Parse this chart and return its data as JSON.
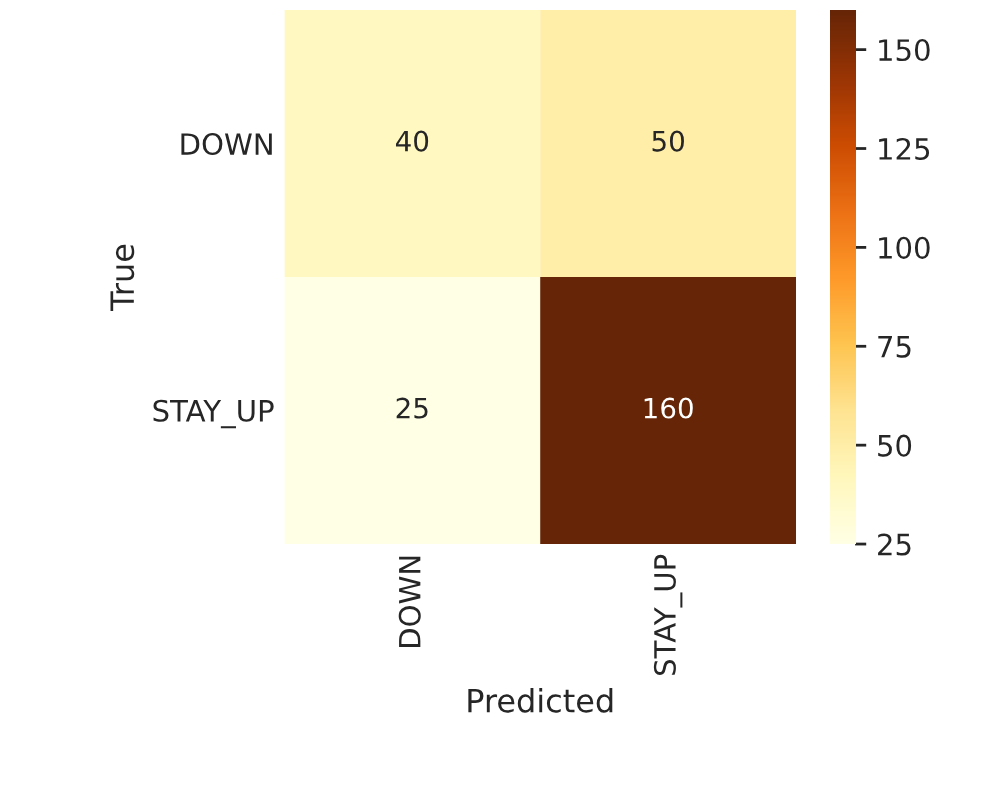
{
  "chart_data": {
    "type": "heatmap",
    "xlabel": "Predicted",
    "ylabel": "True",
    "categories": [
      "DOWN",
      "STAY_UP"
    ],
    "y_categories": [
      "DOWN",
      "STAY_UP"
    ],
    "cells": [
      [
        40,
        50
      ],
      [
        25,
        160
      ]
    ],
    "clim": [
      25,
      160
    ],
    "cticks": [
      25,
      50,
      75,
      100,
      125,
      150
    ],
    "data_labels": true
  }
}
